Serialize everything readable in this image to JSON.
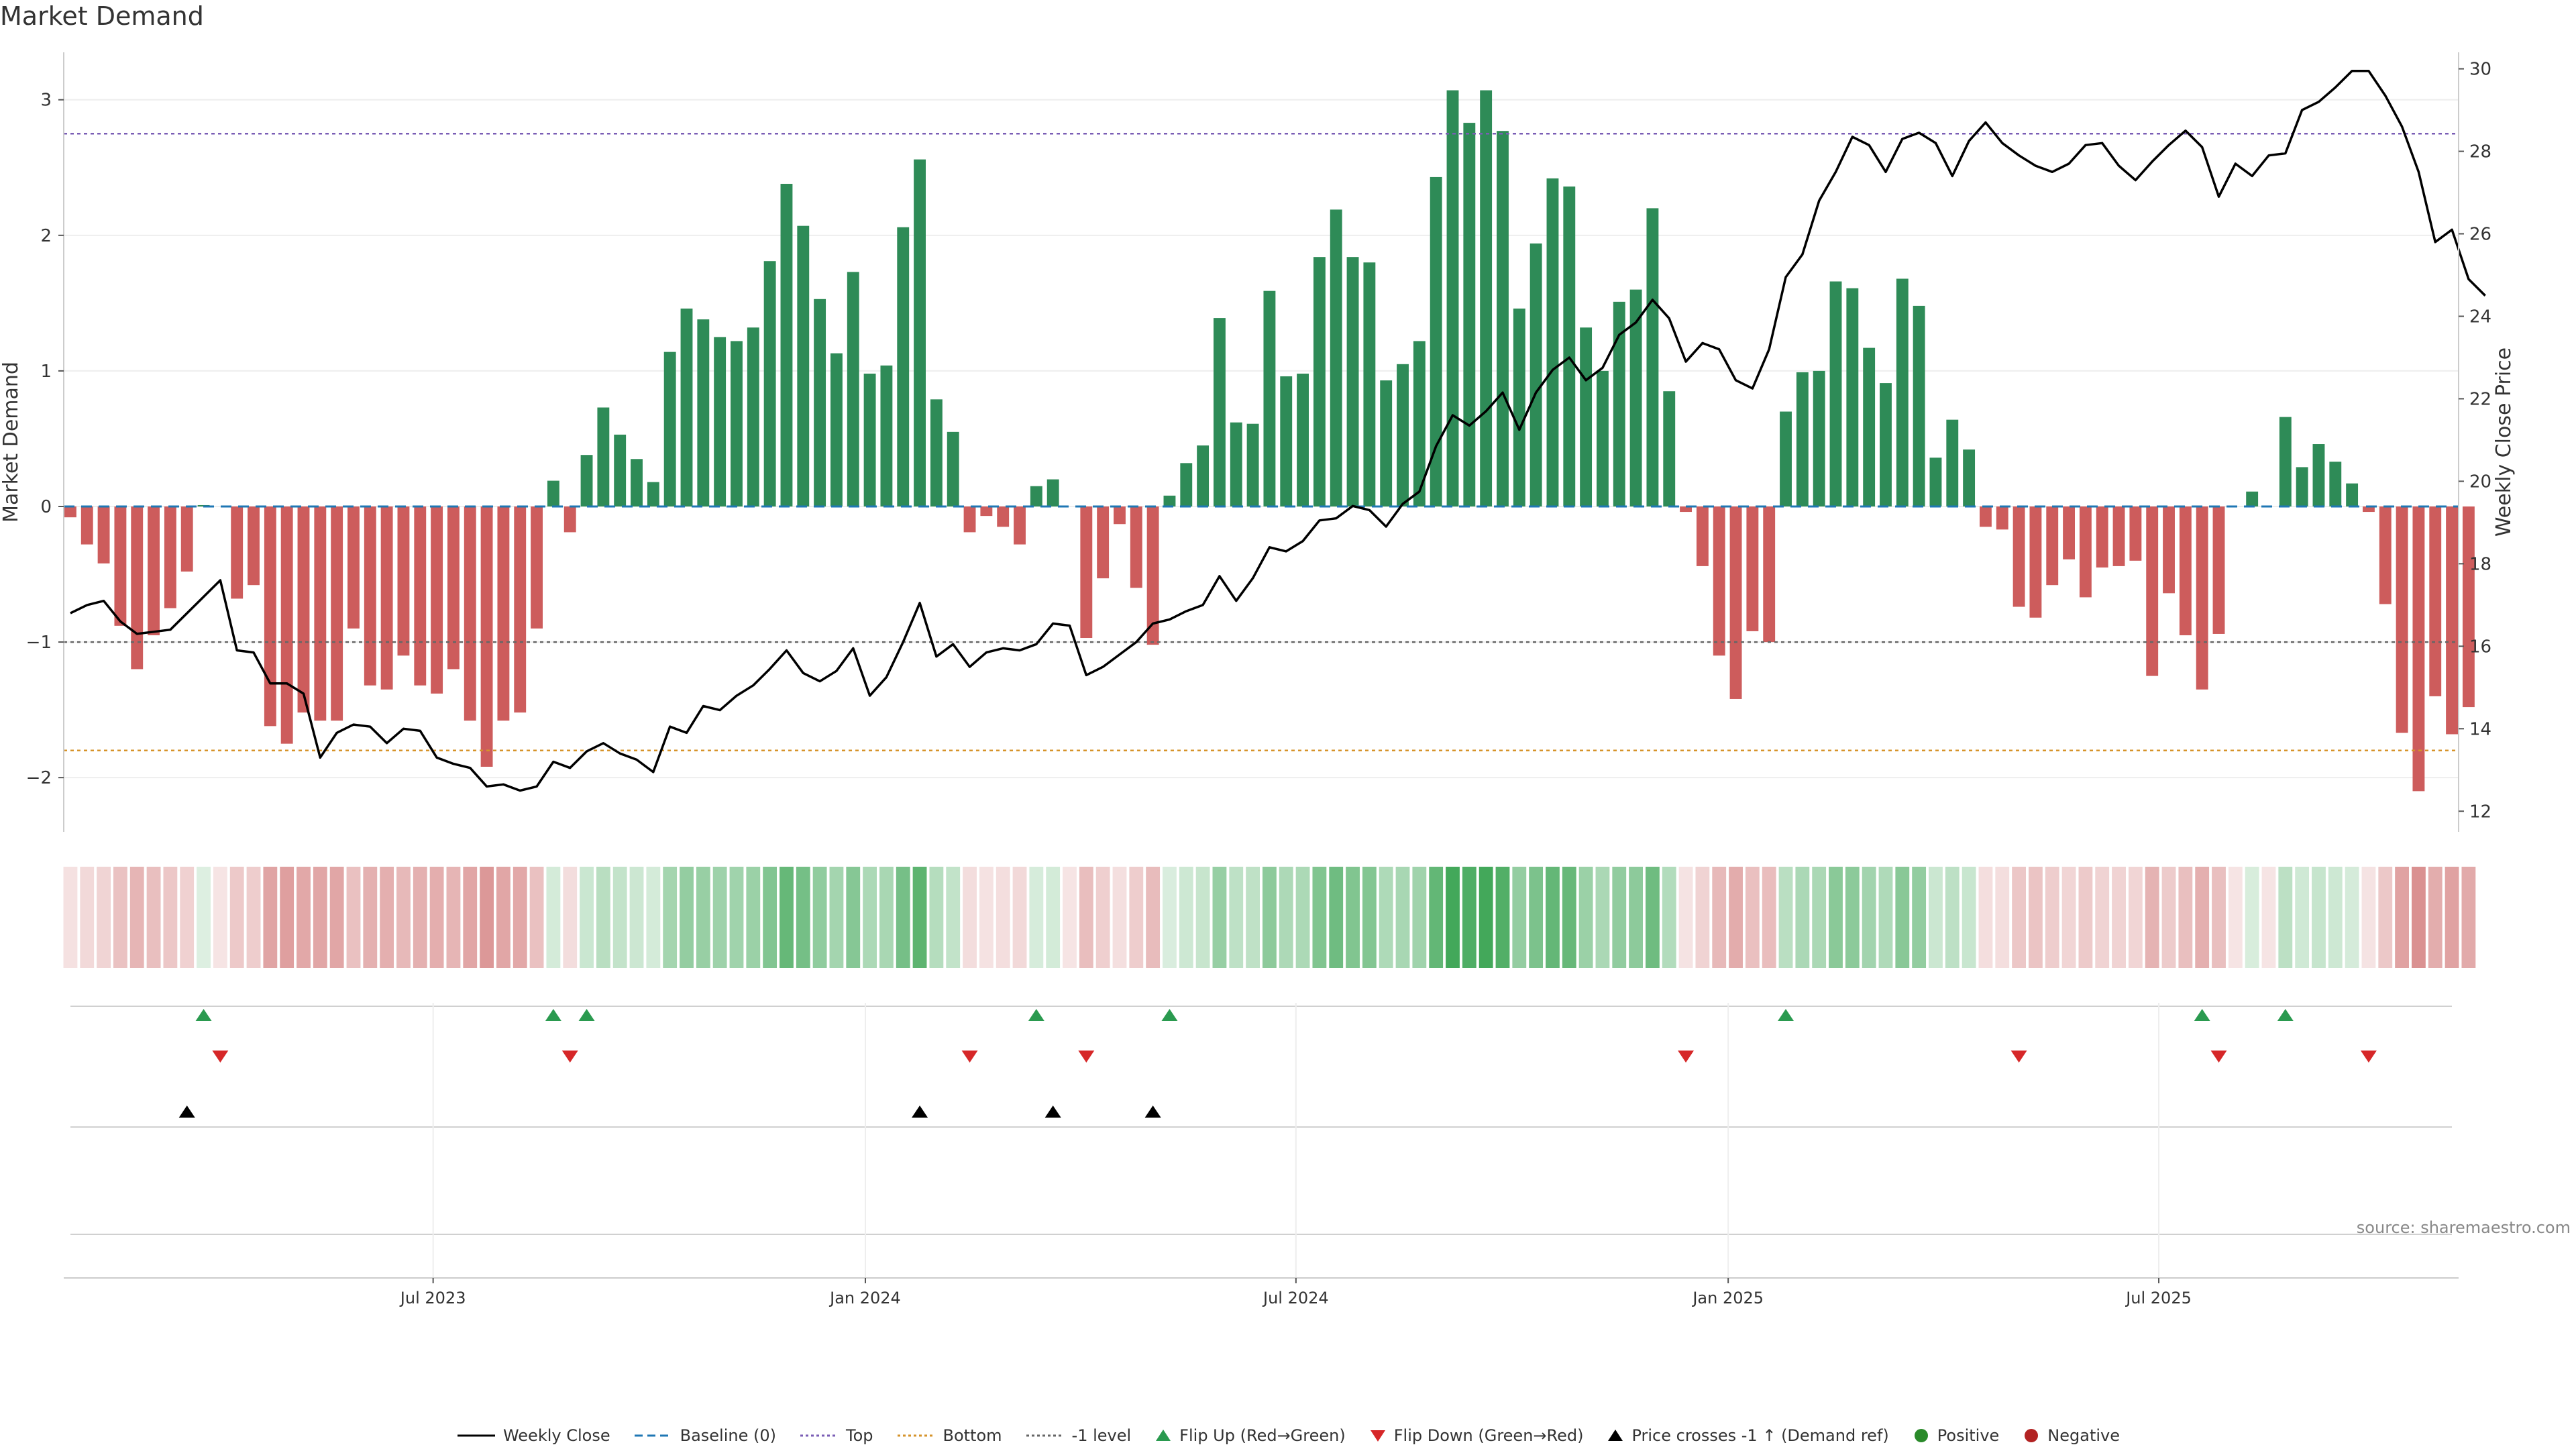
{
  "title": "Market Demand",
  "source": "source: sharemaestro.com",
  "legend": [
    {
      "label": "Weekly Close",
      "symbol": "line",
      "color": "#000000",
      "dash": "solid"
    },
    {
      "label": "Baseline (0)",
      "symbol": "line",
      "color": "#1f77b4",
      "dash": "dashed"
    },
    {
      "label": "Top",
      "symbol": "line",
      "color": "#7a5db5",
      "dash": "dotted"
    },
    {
      "label": "Bottom",
      "symbol": "line",
      "color": "#d6932a",
      "dash": "dotted"
    },
    {
      "label": "-1 level",
      "symbol": "line",
      "color": "#666666",
      "dash": "dotted"
    },
    {
      "label": "Flip Up (Red→Green)",
      "symbol": "tri-up",
      "color": "#2a9a4f"
    },
    {
      "label": "Flip Down (Green→Red)",
      "symbol": "tri-down",
      "color": "#d62728"
    },
    {
      "label": "Price crosses -1 ↑ (Demand ref)",
      "symbol": "tri-up",
      "color": "#000000"
    },
    {
      "label": "Positive",
      "symbol": "dot",
      "color": "#2a8a2a"
    },
    {
      "label": "Negative",
      "symbol": "dot",
      "color": "#b22222"
    }
  ],
  "colors": {
    "positive_bar": "#2e8b57",
    "negative_bar": "#cd5c5c",
    "price_line": "#000000",
    "baseline": "#1f77b4",
    "top": "#7a5db5",
    "bottom": "#d6932a",
    "minus_one": "#666666",
    "flip_up": "#2a9a4f",
    "flip_down": "#d62728",
    "cross": "#000000"
  },
  "chart_data": {
    "type": "bar",
    "ylabel": "Market Demand",
    "y2label": "Weekly Close Price",
    "ylim": [
      -2.4,
      3.35
    ],
    "y2lim": [
      11.5,
      30.4
    ],
    "yticks": [
      3,
      2,
      1,
      0,
      -1,
      -2
    ],
    "yticklabels": [
      "3",
      "2",
      "1",
      "0",
      "−1",
      "−2"
    ],
    "y2ticks": [
      30,
      28,
      26,
      24,
      22,
      20,
      18,
      16,
      14,
      12
    ],
    "xticks": [
      "Jul 2023",
      "Jan 2024",
      "Jul 2024",
      "Jan 2025",
      "Jul 2025"
    ],
    "xtick_positions": [
      21.5,
      47.6,
      73.6,
      99.7,
      125.7
    ],
    "reference_lines": {
      "baseline": 0,
      "top": 2.75,
      "bottom": -1.8,
      "minus_one": -1
    },
    "x_range": [
      -0.4,
      143.4
    ],
    "demand": [
      -0.08,
      -0.28,
      -0.42,
      -0.88,
      -1.2,
      -0.95,
      -0.75,
      -0.48,
      0.01,
      0,
      -0.68,
      -0.58,
      -1.62,
      -1.75,
      -1.52,
      -1.58,
      -1.58,
      -0.9,
      -1.32,
      -1.35,
      -1.1,
      -1.32,
      -1.38,
      -1.2,
      -1.58,
      -1.92,
      -1.58,
      -1.52,
      -0.9,
      0.19,
      -0.19,
      0.38,
      0.73,
      0.53,
      0.35,
      0.18,
      1.14,
      1.46,
      1.38,
      1.25,
      1.22,
      1.32,
      1.81,
      2.38,
      2.07,
      1.53,
      1.13,
      1.73,
      0.98,
      1.04,
      2.06,
      2.56,
      0.79,
      0.55,
      -0.19,
      -0.07,
      -0.15,
      -0.28,
      0.15,
      0.2,
      0,
      -0.97,
      -0.53,
      -0.13,
      -0.6,
      -1.02,
      0.08,
      0.32,
      0.45,
      1.39,
      0.62,
      0.61,
      1.59,
      0.96,
      0.98,
      1.84,
      2.19,
      1.84,
      1.8,
      0.93,
      1.05,
      1.22,
      2.43,
      3.07,
      2.83,
      3.07,
      2.77,
      1.46,
      1.94,
      2.42,
      2.36,
      1.32,
      1.0,
      1.51,
      1.6,
      2.2,
      0.85,
      -0.04,
      -0.44,
      -1.1,
      -1.42,
      -0.92,
      -1.0,
      0.7,
      0.99,
      1.0,
      1.66,
      1.61,
      1.17,
      0.91,
      1.68,
      1.48,
      0.36,
      0.64,
      0.42,
      -0.15,
      -0.17,
      -0.74,
      -0.82,
      -0.58,
      -0.39,
      -0.67,
      -0.45,
      -0.44,
      -0.4,
      -1.25,
      -0.64,
      -0.95,
      -1.35,
      -0.94,
      0,
      0.11,
      0,
      0.66,
      0.29,
      0.46,
      0.33,
      0.17,
      -0.04,
      -0.72,
      -1.67,
      -2.1,
      -1.4,
      -1.68,
      -1.48
    ],
    "weekly_close": [
      [
        0,
        16.8
      ],
      [
        1,
        17.0
      ],
      [
        2,
        17.1
      ],
      [
        3,
        16.6
      ],
      [
        4,
        16.3
      ],
      [
        5,
        16.35
      ],
      [
        6,
        16.4
      ],
      [
        8,
        17.2
      ],
      [
        9,
        17.6
      ],
      [
        10,
        15.9
      ],
      [
        11,
        15.85
      ],
      [
        12,
        15.1
      ],
      [
        13,
        15.1
      ],
      [
        14,
        14.85
      ],
      [
        15,
        13.3
      ],
      [
        16,
        13.9
      ],
      [
        17,
        14.1
      ],
      [
        18,
        14.05
      ],
      [
        19,
        13.65
      ],
      [
        20,
        14.0
      ],
      [
        21,
        13.95
      ],
      [
        22,
        13.3
      ],
      [
        23,
        13.15
      ],
      [
        24,
        13.05
      ],
      [
        25,
        12.6
      ],
      [
        26,
        12.65
      ],
      [
        27,
        12.5
      ],
      [
        28,
        12.6
      ],
      [
        29,
        13.2
      ],
      [
        30,
        13.05
      ],
      [
        31,
        13.45
      ],
      [
        32,
        13.65
      ],
      [
        33,
        13.4
      ],
      [
        34,
        13.25
      ],
      [
        35,
        12.95
      ],
      [
        36,
        14.05
      ],
      [
        37,
        13.9
      ],
      [
        38,
        14.55
      ],
      [
        39,
        14.45
      ],
      [
        40,
        14.8
      ],
      [
        41,
        15.05
      ],
      [
        42,
        15.45
      ],
      [
        43,
        15.9
      ],
      [
        44,
        15.35
      ],
      [
        45,
        15.15
      ],
      [
        46,
        15.4
      ],
      [
        47,
        15.95
      ],
      [
        48,
        14.8
      ],
      [
        49,
        15.25
      ],
      [
        50,
        16.1
      ],
      [
        51,
        17.05
      ],
      [
        52,
        15.75
      ],
      [
        53,
        16.05
      ],
      [
        54,
        15.5
      ],
      [
        55,
        15.85
      ],
      [
        56,
        15.95
      ],
      [
        57,
        15.9
      ],
      [
        58,
        16.05
      ],
      [
        59,
        16.55
      ],
      [
        60,
        16.5
      ],
      [
        61,
        15.3
      ],
      [
        62,
        15.5
      ],
      [
        63,
        15.8
      ],
      [
        64,
        16.1
      ],
      [
        65,
        16.55
      ],
      [
        66,
        16.65
      ],
      [
        67,
        16.85
      ],
      [
        68,
        17.0
      ],
      [
        69,
        17.7
      ],
      [
        70,
        17.1
      ],
      [
        71,
        17.65
      ],
      [
        72,
        18.4
      ],
      [
        73,
        18.3
      ],
      [
        74,
        18.55
      ],
      [
        75,
        19.05
      ],
      [
        76,
        19.1
      ],
      [
        77,
        19.4
      ],
      [
        78,
        19.3
      ],
      [
        79,
        18.9
      ],
      [
        80,
        19.45
      ],
      [
        81,
        19.75
      ],
      [
        82,
        20.85
      ],
      [
        83,
        21.6
      ],
      [
        84,
        21.35
      ],
      [
        85,
        21.7
      ],
      [
        86,
        22.15
      ],
      [
        87,
        21.25
      ],
      [
        88,
        22.15
      ],
      [
        89,
        22.7
      ],
      [
        90,
        23.0
      ],
      [
        91,
        22.45
      ],
      [
        92,
        22.75
      ],
      [
        93,
        23.55
      ],
      [
        94,
        23.85
      ],
      [
        95,
        24.4
      ],
      [
        96,
        23.95
      ],
      [
        97,
        22.9
      ],
      [
        98,
        23.35
      ],
      [
        99,
        23.2
      ],
      [
        100,
        22.45
      ],
      [
        101,
        22.25
      ],
      [
        102,
        23.2
      ],
      [
        103,
        24.95
      ],
      [
        104,
        25.5
      ],
      [
        105,
        26.8
      ],
      [
        106,
        27.5
      ],
      [
        107,
        28.35
      ],
      [
        108,
        28.15
      ],
      [
        109,
        27.5
      ],
      [
        110,
        28.3
      ],
      [
        111,
        28.45
      ],
      [
        112,
        28.2
      ],
      [
        113,
        27.4
      ],
      [
        114,
        28.25
      ],
      [
        115,
        28.7
      ],
      [
        116,
        28.2
      ],
      [
        117,
        27.9
      ],
      [
        118,
        27.65
      ],
      [
        119,
        27.5
      ],
      [
        120,
        27.7
      ],
      [
        121,
        28.15
      ],
      [
        122,
        28.2
      ],
      [
        123,
        27.65
      ],
      [
        124,
        27.3
      ],
      [
        125,
        27.75
      ],
      [
        126,
        28.15
      ],
      [
        127,
        28.5
      ],
      [
        128,
        28.1
      ],
      [
        129,
        26.9
      ],
      [
        130,
        27.7
      ],
      [
        131,
        27.4
      ],
      [
        132,
        27.9
      ],
      [
        133,
        27.95
      ],
      [
        134,
        29.0
      ],
      [
        135,
        29.2
      ],
      [
        136,
        29.55
      ],
      [
        137,
        29.95
      ],
      [
        138,
        29.95
      ],
      [
        139,
        29.35
      ],
      [
        140,
        28.6
      ],
      [
        141,
        27.5
      ],
      [
        142,
        25.8
      ],
      [
        143,
        26.1
      ],
      [
        144,
        24.9
      ],
      [
        145,
        24.5
      ]
    ],
    "flip_up": [
      8,
      29,
      31,
      58,
      66,
      103,
      128,
      133
    ],
    "flip_down": [
      9,
      30,
      54,
      61,
      97,
      117,
      129,
      138
    ],
    "price_cross_up": [
      7,
      51,
      59,
      65
    ]
  }
}
